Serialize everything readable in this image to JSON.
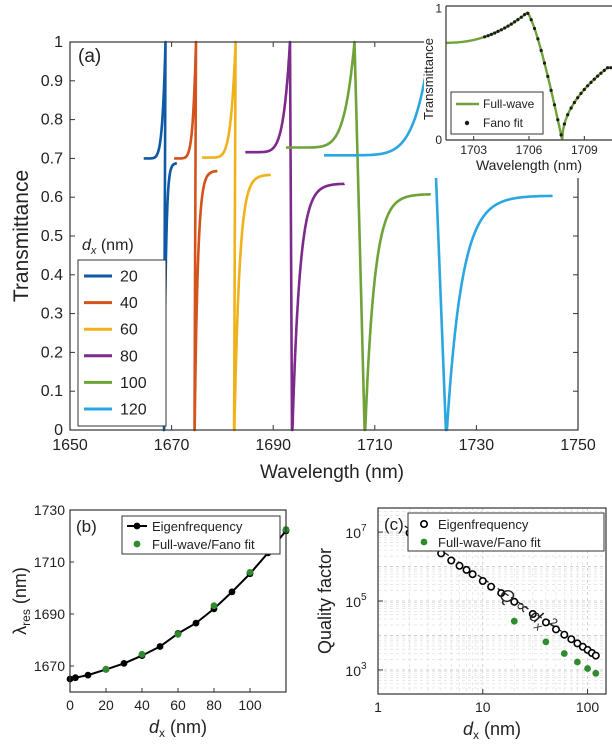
{
  "chart_data": [
    {
      "panel": "(a)",
      "type": "line",
      "xlabel": "Wavelength (nm)",
      "ylabel": "Transmittance",
      "xlim": [
        1650,
        1750
      ],
      "ylim": [
        0,
        1
      ],
      "x_ticks": [
        "1650",
        "1670",
        "1690",
        "1710",
        "1730",
        "1750"
      ],
      "y_ticks": [
        "0",
        "0.1",
        "0.2",
        "0.3",
        "0.4",
        "0.5",
        "0.6",
        "0.7",
        "0.8",
        "0.9",
        "1"
      ],
      "legend_title_symbol": "d",
      "legend_title_sub": "x",
      "legend_title_unit": "(nm)",
      "legend_position": "left",
      "series": [
        {
          "name": "20",
          "color": "#0e5aa6",
          "x_start": 1664.5,
          "x_res": 1668.8,
          "x_min": 1668.5,
          "x_end": 1671.0,
          "t_start": 0.7,
          "t_end": 0.688
        },
        {
          "name": "40",
          "color": "#d4521c",
          "x_start": 1670.5,
          "x_res": 1674.8,
          "x_min": 1674.5,
          "x_end": 1679.0,
          "t_start": 0.7,
          "t_end": 0.668
        },
        {
          "name": "60",
          "color": "#f0b21a",
          "x_start": 1676.0,
          "x_res": 1682.6,
          "x_min": 1682.3,
          "x_end": 1689.5,
          "t_start": 0.702,
          "t_end": 0.658
        },
        {
          "name": "80",
          "color": "#7c2b8d",
          "x_start": 1684.5,
          "x_res": 1693.3,
          "x_min": 1693.7,
          "x_end": 1704.0,
          "t_start": 0.716,
          "t_end": 0.635
        },
        {
          "name": "100",
          "color": "#6fa33a",
          "x_start": 1692.5,
          "x_res": 1706.0,
          "x_min": 1708.0,
          "x_end": 1721.0,
          "t_start": 0.728,
          "t_end": 0.608
        },
        {
          "name": "120",
          "color": "#2aa7e0",
          "x_start": 1700.0,
          "x_res": 1721.0,
          "x_min": 1724.0,
          "x_end": 1745.0,
          "t_start": 0.708,
          "t_end": 0.604
        }
      ]
    },
    {
      "panel": "inset",
      "type": "line",
      "xlabel": "Wavelength (nm)",
      "ylabel": "Transmittance",
      "xlim": [
        1701.5,
        1710.5
      ],
      "ylim": [
        0,
        1.02
      ],
      "x_ticks": [
        "1703",
        "1706",
        "1709"
      ],
      "y_ticks": [
        "0",
        "1"
      ],
      "series": [
        {
          "name": "Full-wave",
          "color": "#6fa33a",
          "x_res": 1705.9,
          "x_min": 1707.8,
          "t_left": 0.74,
          "t_right": 0.55
        },
        {
          "name": "Fano fit",
          "color": "#1a1a1a",
          "marker": "dot",
          "x_start": 1703.6,
          "x_step": 0.18
        }
      ]
    },
    {
      "panel": "(b)",
      "type": "line",
      "xlabel_symbol": "d",
      "xlabel_sub": "x",
      "xlabel_unit": "(nm)",
      "ylabel_symbol": "λ",
      "ylabel_sub": "res",
      "ylabel_unit": "(nm)",
      "xlim": [
        0,
        120
      ],
      "ylim": [
        1660,
        1730
      ],
      "x_ticks": [
        "0",
        "20",
        "40",
        "60",
        "80",
        "100"
      ],
      "y_ticks": [
        "1670",
        "1690",
        "1710",
        "1730"
      ],
      "series": [
        {
          "name": "Eigenfrequency",
          "color": "#000000",
          "marker": "dot-line",
          "x": [
            0,
            3,
            10,
            20,
            30,
            40,
            50,
            60,
            70,
            80,
            90,
            100,
            110,
            120
          ],
          "y": [
            1665,
            1665.5,
            1666.5,
            1668.7,
            1671,
            1674,
            1677.5,
            1682.5,
            1686.5,
            1692,
            1698.5,
            1705.5,
            1713.5,
            1722
          ]
        },
        {
          "name": "Full-wave/Fano fit",
          "color": "#2e8b2e",
          "marker": "dot",
          "x": [
            20,
            40,
            60,
            80,
            100,
            120
          ],
          "y": [
            1668.8,
            1674.5,
            1682.2,
            1693.2,
            1706.0,
            1722.5
          ]
        }
      ]
    },
    {
      "panel": "(c)",
      "type": "scatter",
      "xlabel_symbol": "d",
      "xlabel_sub": "x",
      "xlabel_unit": "(nm)",
      "ylabel": "Quality factor",
      "x_scale": "log",
      "y_scale": "log",
      "xlim": [
        1,
        150
      ],
      "ylim": [
        200,
        50000000
      ],
      "x_ticks": [
        "1",
        "10",
        "100"
      ],
      "y_ticks": [
        {
          "base": "10",
          "exp": "3"
        },
        {
          "base": "10",
          "exp": "5"
        },
        {
          "base": "10",
          "exp": "7"
        }
      ],
      "annotation": {
        "symbol": "Q ∝ d",
        "sub": "x",
        "sup": "-2"
      },
      "series": [
        {
          "name": "Eigenfrequency",
          "color": "#000000",
          "marker": "open-circle",
          "x": [
            2,
            3,
            4,
            5,
            6,
            7,
            8,
            10,
            12,
            15,
            20,
            30,
            40,
            50,
            60,
            70,
            80,
            90,
            100,
            110,
            120
          ],
          "y": [
            9500000,
            4200000,
            2400000,
            1500000,
            1050000,
            800000,
            600000,
            380000,
            260000,
            170000,
            95000,
            42000,
            24000,
            15000,
            10500,
            7800,
            5900,
            4700,
            3800,
            3100,
            2600
          ]
        },
        {
          "name": "Full-wave/Fano fit",
          "color": "#2e8b2e",
          "marker": "dot",
          "x": [
            20,
            40,
            60,
            80,
            100,
            120
          ],
          "y": [
            26000,
            6500,
            3000,
            1700,
            1100,
            800
          ]
        }
      ]
    }
  ]
}
